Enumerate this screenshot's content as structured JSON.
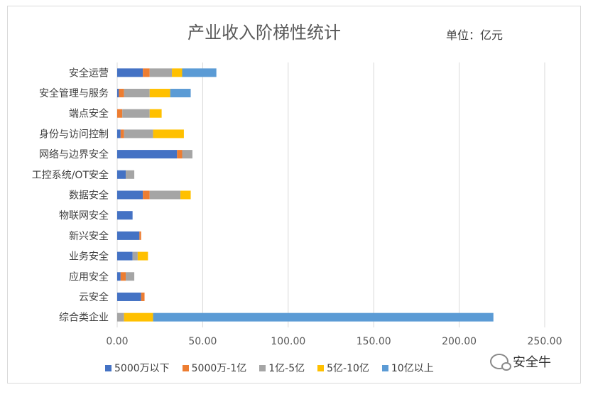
{
  "chart_data": {
    "type": "bar",
    "orientation": "horizontal",
    "stacked": true,
    "title": "产业收入阶梯性统计",
    "unit_note": "单位：亿元",
    "categories": [
      "安全运营",
      "安全管理与服务",
      "端点安全",
      "身份与访问控制",
      "网络与边界安全",
      "工控系统/OT安全",
      "数据安全",
      "物联网安全",
      "新兴安全",
      "业务安全",
      "应用安全",
      "云安全",
      "综合类企业"
    ],
    "series": [
      {
        "name": "5000万以下",
        "color": "#4472C4",
        "values": [
          15,
          1,
          0,
          2,
          35,
          5,
          15,
          9,
          13,
          9,
          2,
          14,
          0
        ]
      },
      {
        "name": "5000万-1亿",
        "color": "#ED7D31",
        "values": [
          4,
          3,
          3,
          2,
          3,
          0,
          4,
          0,
          1,
          0,
          3,
          2,
          0
        ]
      },
      {
        "name": "1亿-5亿",
        "color": "#A5A5A5",
        "values": [
          13,
          15,
          16,
          17,
          6,
          5,
          18,
          0,
          0,
          3,
          5,
          0,
          4
        ]
      },
      {
        "name": "5亿-10亿",
        "color": "#FFC000",
        "values": [
          6,
          12,
          7,
          18,
          0,
          0,
          6,
          0,
          0,
          6,
          0,
          0,
          17
        ]
      },
      {
        "name": "10亿以上",
        "color": "#5B9BD5",
        "values": [
          20,
          12,
          0,
          0,
          0,
          0,
          0,
          0,
          0,
          0,
          0,
          0,
          199
        ]
      }
    ],
    "xlim": [
      0,
      250
    ],
    "xticks": [
      "0.00",
      "50.00",
      "100.00",
      "150.00",
      "200.00",
      "250.00"
    ],
    "grid": true,
    "legend_position": "bottom"
  },
  "watermark": "安全牛"
}
